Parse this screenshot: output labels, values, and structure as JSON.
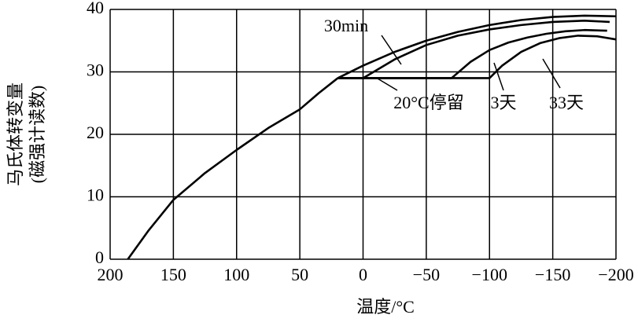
{
  "chart_data": {
    "type": "line",
    "x_label": "温度/°C",
    "y_label": [
      "马氏体转变量",
      "(磁强计读数)"
    ],
    "xlim": [
      200,
      -200
    ],
    "ylim": [
      0,
      40
    ],
    "xticks": [
      200,
      150,
      100,
      50,
      0,
      {
        "value": -50,
        "label": "−50"
      },
      {
        "value": -100,
        "label": "−100"
      },
      {
        "value": -150,
        "label": "−150"
      },
      {
        "value": -200,
        "label": "−200"
      }
    ],
    "yticks": [
      0,
      10,
      20,
      30,
      40
    ],
    "grid": true,
    "annotations": [
      "20°C停留"
    ],
    "series": [
      {
        "color": "#000000",
        "x": [
          186,
          170,
          150,
          125,
          100,
          75,
          50,
          35,
          20
        ],
        "values": [
          0,
          4.5,
          9.5,
          13.8,
          17.5,
          21,
          24,
          26.6,
          29
        ]
      },
      {
        "color": "#000000",
        "x": [
          20,
          0,
          -25,
          -50,
          -75,
          -100,
          -125,
          -150,
          -175,
          -200
        ],
        "values": [
          29,
          31,
          33.2,
          35,
          36.4,
          37.5,
          38.3,
          38.8,
          39,
          38.9
        ]
      },
      {
        "name": "30min",
        "color": "#000000",
        "x": [
          20,
          0,
          -25,
          -50,
          -75,
          -100,
          -125,
          -150,
          -175,
          -195
        ],
        "values": [
          29,
          29,
          32,
          34.3,
          35.8,
          36.8,
          37.5,
          38,
          38.2,
          38
        ]
      },
      {
        "name": "3天",
        "color": "#000000",
        "x": [
          20,
          -70,
          -85,
          -100,
          -115,
          -130,
          -145,
          -160,
          -175,
          -193
        ],
        "values": [
          29,
          29,
          31.6,
          33.5,
          34.7,
          35.5,
          36.1,
          36.5,
          36.7,
          36.6
        ]
      },
      {
        "name": "33天",
        "color": "#000000",
        "x": [
          20,
          -100,
          -110,
          -125,
          -140,
          -155,
          -170,
          -185,
          -200
        ],
        "values": [
          29,
          29,
          31,
          33.2,
          34.6,
          35.4,
          35.8,
          35.7,
          35.2
        ]
      }
    ]
  }
}
